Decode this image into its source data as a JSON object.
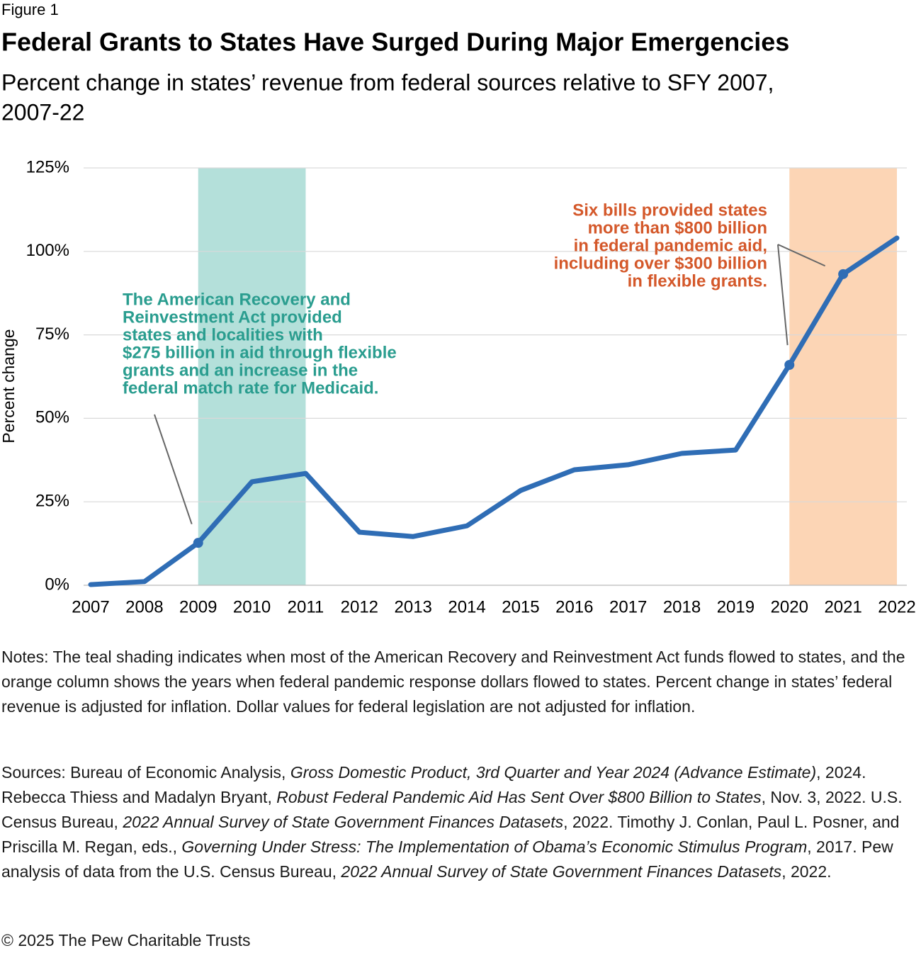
{
  "chart_data": {
    "type": "line",
    "figure_label": "Figure 1",
    "title": "Federal Grants to States Have Surged During Major Emergencies",
    "subtitle_lines": [
      "Percent change in states’ revenue from federal sources relative to SFY 2007,",
      "2007-22"
    ],
    "y_label": "Percent change",
    "categories": [
      "2007",
      "2008",
      "2009",
      "2010",
      "2011",
      "2012",
      "2013",
      "2014",
      "2015",
      "2016",
      "2017",
      "2018",
      "2019",
      "2020",
      "2021",
      "2022"
    ],
    "series": [
      {
        "name": "Percent change in states’ federal revenue",
        "color": "#2f6db5",
        "values": [
          0.2,
          1.1,
          12.7,
          31.0,
          33.5,
          15.9,
          14.6,
          17.8,
          28.4,
          34.6,
          36.1,
          39.5,
          40.5,
          66.0,
          93.2,
          104.0
        ]
      }
    ],
    "ylim": [
      0,
      125
    ],
    "yticks": [
      {
        "value": 0,
        "label": "0%"
      },
      {
        "value": 25,
        "label": "25%"
      },
      {
        "value": 50,
        "label": "50%"
      },
      {
        "value": 75,
        "label": "75%"
      },
      {
        "value": 100,
        "label": "100%"
      },
      {
        "value": 125,
        "label": "125%"
      }
    ],
    "grid": true,
    "shaded_regions": [
      {
        "start": "2009",
        "end": "2011",
        "color": "#b4e0da"
      },
      {
        "start": "2020",
        "end": "2022",
        "color": "#fcd5b5"
      }
    ],
    "annotations": [
      {
        "color": "#2a9d8f",
        "align": "left",
        "targets": [
          "2009"
        ],
        "lines": [
          "The American Recovery and",
          "Reinvestment Act provided",
          "states and localities with",
          "$275 billion in aid through flexible",
          "grants and an increase in the",
          "federal match rate for Medicaid."
        ]
      },
      {
        "color": "#d4582a",
        "align": "right",
        "targets": [
          "2020",
          "2021"
        ],
        "lines": [
          "Six bills provided states",
          "more than $800 billion",
          "in federal pandemic aid,",
          "including over $300 billion",
          "in flexible grants."
        ]
      }
    ],
    "notes": "Notes: The teal shading indicates when most of the American Recovery and Reinvestment Act funds flowed to states, and the orange column shows the years when federal pandemic response dollars flowed to states. Percent change in states’ federal revenue is adjusted for inflation. Dollar values for federal legislation are not adjusted for inflation.",
    "sources": [
      {
        "text": "Sources: Bureau of Economic Analysis, ",
        "italic": false
      },
      {
        "text": "Gross Domestic Product, 3rd Quarter and Year 2024 (Advance Estimate)",
        "italic": true
      },
      {
        "text": ", 2024. Rebecca Thiess and Madalyn Bryant, ",
        "italic": false
      },
      {
        "text": "Robust Federal Pandemic Aid Has Sent Over $800 Billion to States",
        "italic": true
      },
      {
        "text": ", Nov. 3, 2022. U.S. Census Bureau, ",
        "italic": false
      },
      {
        "text": "2022 Annual Survey of State Government Finances Datasets",
        "italic": true
      },
      {
        "text": ", 2022. Timothy J. Conlan, Paul L. Posner, and Priscilla M. Regan, eds., ",
        "italic": false
      },
      {
        "text": "Governing Under Stress: The Implementation of Obama’s Economic Stimulus Program",
        "italic": true
      },
      {
        "text": ", 2017. Pew analysis of data from the U.S. Census Bureau, ",
        "italic": false
      },
      {
        "text": "2022 Annual Survey of State Government Finances Datasets",
        "italic": true
      },
      {
        "text": ", 2022.",
        "italic": false
      }
    ],
    "copyright": "© 2025 The Pew Charitable Trusts"
  }
}
